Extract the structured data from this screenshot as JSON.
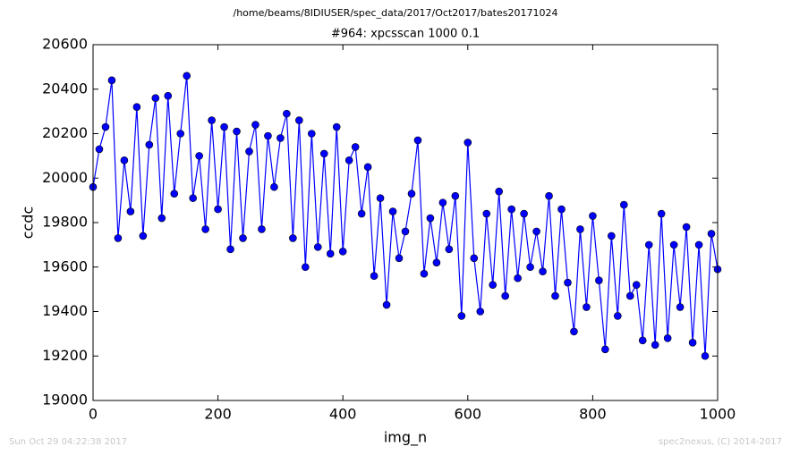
{
  "chart_data": {
    "type": "line",
    "suptitle": "/home/beams/8IDIUSER/spec_data/2017/Oct2017/bates20171024",
    "title": "#964: xpcsscan 1000 0.1",
    "xlabel": "img_n",
    "ylabel": "ccdc",
    "footer_left": "Sun Oct 29 04:22:38 2017",
    "footer_right": "spec2nexus, (C) 2014-2017",
    "xlim": [
      0,
      1000
    ],
    "xticks": [
      0,
      200,
      400,
      600,
      800,
      1000
    ],
    "ylim": [
      19000,
      20600
    ],
    "yticks": [
      19000,
      19200,
      19400,
      19600,
      19800,
      20000,
      20200,
      20400,
      20600
    ],
    "grid": false,
    "x": [
      0,
      10,
      20,
      30,
      40,
      50,
      60,
      70,
      80,
      90,
      100,
      110,
      120,
      130,
      140,
      150,
      160,
      170,
      180,
      190,
      200,
      210,
      220,
      230,
      240,
      250,
      260,
      270,
      280,
      290,
      300,
      310,
      320,
      330,
      340,
      350,
      360,
      370,
      380,
      390,
      400,
      410,
      420,
      430,
      440,
      450,
      460,
      470,
      480,
      490,
      500,
      510,
      520,
      530,
      540,
      550,
      560,
      570,
      580,
      590,
      600,
      610,
      620,
      630,
      640,
      650,
      660,
      670,
      680,
      690,
      700,
      710,
      720,
      730,
      740,
      750,
      760,
      770,
      780,
      790,
      800,
      810,
      820,
      830,
      840,
      850,
      860,
      870,
      880,
      890,
      900,
      910,
      920,
      930,
      940,
      950,
      960,
      970,
      980,
      990,
      1000
    ],
    "series": [
      {
        "name": "ccdc",
        "color": "#0000ff",
        "values": [
          19960,
          20130,
          20230,
          20440,
          19730,
          20080,
          19850,
          20320,
          19740,
          20150,
          20360,
          19820,
          20370,
          19930,
          20200,
          20460,
          19910,
          20100,
          19770,
          20260,
          19860,
          20230,
          19680,
          20210,
          19730,
          20120,
          20240,
          19770,
          20190,
          19960,
          20180,
          20290,
          19730,
          20260,
          19600,
          20200,
          19690,
          20110,
          19660,
          20230,
          19670,
          20080,
          20140,
          19840,
          20050,
          19560,
          19910,
          19430,
          19850,
          19640,
          19760,
          19930,
          20170,
          19570,
          19820,
          19620,
          19890,
          19680,
          19920,
          19380,
          20160,
          19640,
          19400,
          19840,
          19520,
          19940,
          19470,
          19860,
          19550,
          19840,
          19600,
          19760,
          19580,
          19920,
          19470,
          19860,
          19530,
          19310,
          19770,
          19420,
          19830,
          19540,
          19230,
          19740,
          19380,
          19880,
          19470,
          19520,
          19270,
          19700,
          19250,
          19840,
          19280,
          19700,
          19420,
          19780,
          19260,
          19700,
          19200,
          19750,
          19590
        ]
      }
    ]
  }
}
